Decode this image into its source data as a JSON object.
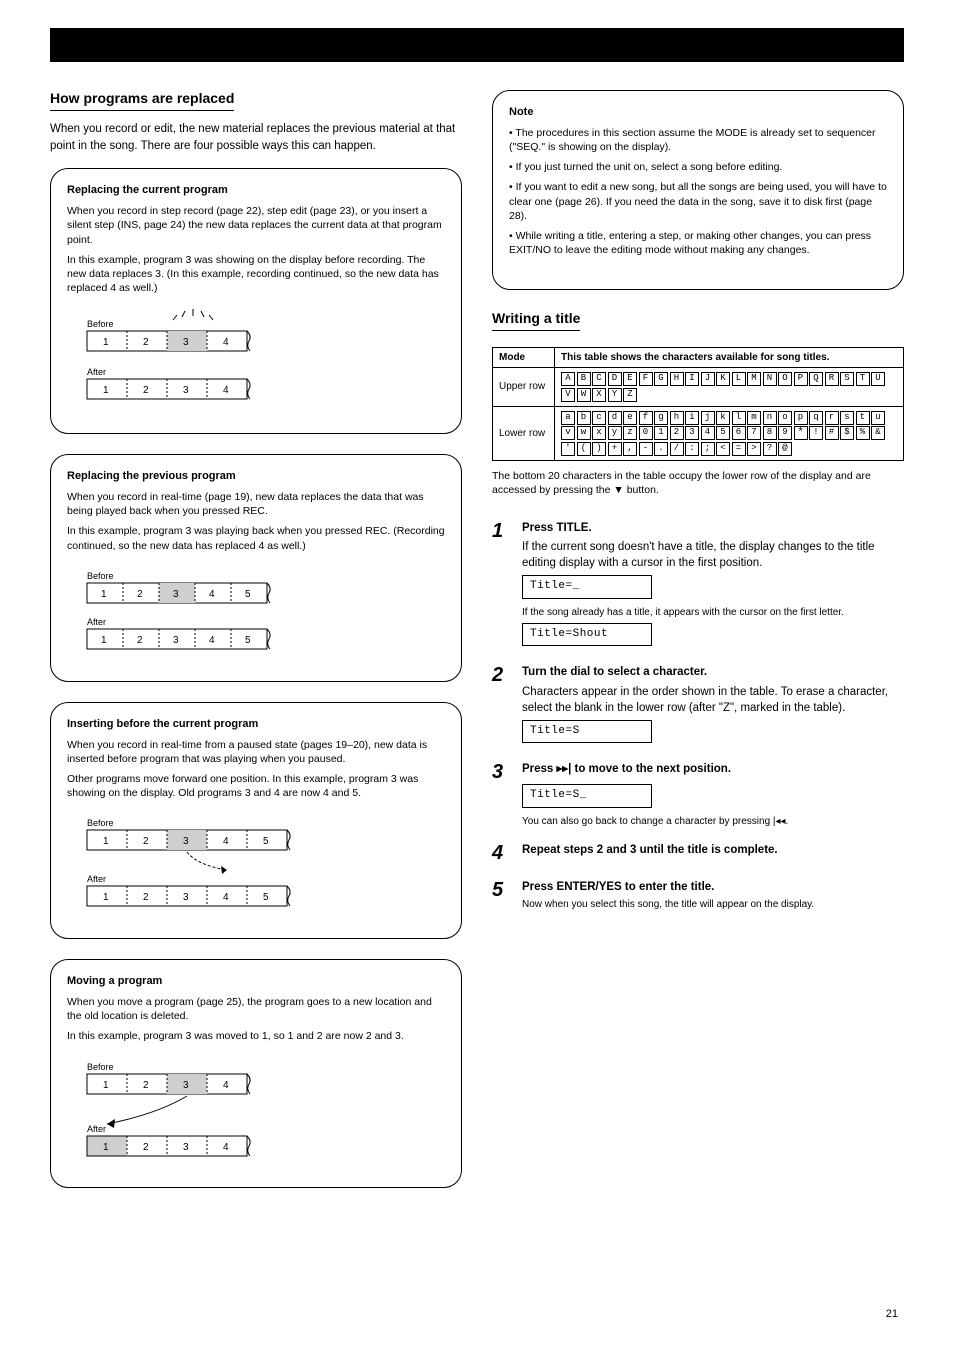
{
  "page_number": "21",
  "colors": {
    "black": "#000000",
    "white": "#ffffff",
    "grey_fill": "#cfcfcf",
    "dash": "#000000"
  },
  "left": {
    "title": "How programs are replaced",
    "intro": "When you record or edit, the new material replaces the previous material at that point in the song. There are four possible ways this can happen.",
    "panels": [
      {
        "title": "Replacing the current program",
        "body1": "When you record in step record (page 22), step edit (page 23), or you insert a silent step (INS, page 24) the new data replaces the current data at that program point.",
        "body2": "In this example, program 3 was showing on the display before recording. The new data replaces 3. (In this example, recording continued, so the new data has replaced 4 as well.)",
        "diagram": {
          "type": "program-strip",
          "before_labels": [
            "1",
            "2",
            "3",
            "4"
          ],
          "after_labels": [
            "1",
            "2",
            "3",
            "4"
          ],
          "highlight_before": [
            2
          ],
          "highlight_after": [
            2,
            3
          ],
          "blink": true,
          "arrow": "none"
        }
      },
      {
        "title": "Replacing the previous program",
        "body1": "When you record in real-time (page 19), new data replaces the data that was being played back when you pressed REC.",
        "body2": "In this example, program 3 was playing back when you pressed REC. (Recording continued, so the new data has replaced 4 as well.)",
        "diagram": {
          "type": "program-strip",
          "before_labels": [
            "1",
            "2",
            "3",
            "4",
            "5"
          ],
          "after_labels": [
            "1",
            "2",
            "3",
            "4",
            "5"
          ],
          "highlight_before": [
            2,
            3
          ],
          "highlight_after": [
            2,
            3
          ],
          "arrow": "none"
        }
      },
      {
        "title": "Inserting before the current program",
        "body1": "When you record in real-time from a paused state (pages 19–20), new data is inserted before program that was playing when you paused.",
        "body2": "Other programs move forward one position. In this example, program 3 was showing on the display. Old programs 3 and 4 are now 4 and 5.",
        "diagram": {
          "type": "program-strip",
          "before_labels": [
            "1",
            "2",
            "3",
            "4",
            "5"
          ],
          "after_labels": [
            "1",
            "2",
            "3",
            "4",
            "5"
          ],
          "insert_before": 2,
          "arrow": "insert"
        }
      },
      {
        "title": "Moving a program",
        "body1": "When you move a program (page 25), the program goes to a new location and the old location is deleted.",
        "body2": "In this example, program 3 was moved to 1, so 1 and 2 are now 2 and 3.",
        "diagram": {
          "type": "program-strip",
          "before_labels": [
            "1",
            "2",
            "3",
            "4"
          ],
          "after_labels": [
            "1",
            "2",
            "3",
            "4"
          ],
          "highlight_before": [
            2
          ],
          "highlight_after": [
            0
          ],
          "arrow": "move"
        }
      }
    ]
  },
  "right": {
    "note_panel": {
      "title": "Note",
      "lines": [
        "• The procedures in this section assume the MODE is already set to sequencer (\"SEQ.\" is showing on the display).",
        "• If you just turned the unit on, select a song before editing.",
        "• If you want to edit a new song, but all the songs are being used, you will have to clear one (page 26). If you need the data in the song, save it to disk first (page 28).",
        "• While writing a title, entering a step, or making other changes, you can press EXIT/NO to leave the editing mode without making any changes."
      ]
    },
    "title_section": {
      "heading": "Writing a title",
      "intro_label": "Mode",
      "intro_value": "This table shows the characters available for song titles.",
      "table": {
        "row1_label": "Upper row",
        "row1_chars": [
          "A",
          "B",
          "C",
          "D",
          "E",
          "F",
          "G",
          "H",
          "I",
          "J",
          "K",
          "L",
          "M",
          "N",
          "O",
          "P",
          "Q",
          "R",
          "S",
          "T",
          "U",
          "V",
          "W",
          "X",
          "Y",
          "Z"
        ],
        "row2_label": "Lower row",
        "row2_chars": [
          "a",
          "b",
          "c",
          "d",
          "e",
          "f",
          "g",
          "h",
          "i",
          "j",
          "k",
          "l",
          "m",
          "n",
          "o",
          "p",
          "q",
          "r",
          "s",
          "t",
          "u",
          "v",
          "w",
          "x",
          "y",
          "z",
          "0",
          "1",
          "2",
          "3",
          "4",
          "5",
          "6",
          "7",
          "8",
          "9",
          "*",
          "!",
          "#",
          "$",
          "%",
          "&",
          "'",
          "(",
          ")",
          "+",
          ",",
          "-",
          ".",
          "/",
          ":",
          ";",
          "<",
          "=",
          ">",
          "?",
          "@"
        ]
      },
      "table_note": "The bottom 20 characters in the table occupy the lower row of the display and are accessed by pressing the ▼ button.",
      "steps": [
        {
          "n": "1",
          "title": "Press TITLE.",
          "body": "If the current song doesn't have a title, the display changes to the title editing display with a cursor in the first position.",
          "lcd": "Title=_         ",
          "sub": "If the song already has a title, it appears with the cursor on the first letter.",
          "lcd2": "Title=Shout     "
        },
        {
          "n": "2",
          "title": "Turn the dial to select a character.",
          "body": "Characters appear in the order shown in the table. To erase a character, select the blank in the lower row (after \"Z\", marked   in the table).",
          "lcd": "Title=S         "
        },
        {
          "n": "3",
          "title": "Press ▸▸| to move to the next position.",
          "lcd": "Title=S_        ",
          "sub": "You can also go back to change a character by pressing |◂◂."
        },
        {
          "n": "4",
          "title": "Repeat steps 2 and 3 until the title is complete."
        },
        {
          "n": "5",
          "title": "Press ENTER/YES to enter the title.",
          "sub": "Now when you select this song, the title will appear on the display."
        }
      ]
    }
  }
}
